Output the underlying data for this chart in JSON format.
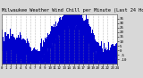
{
  "title": "Milwaukee Weather Wind Chill per Minute (Last 24 Hours)",
  "background_color": "#d8d8d8",
  "plot_bg_color": "#ffffff",
  "line_color": "#0000cc",
  "fill_color": "#0000cc",
  "ylim": [
    -15,
    40
  ],
  "yticks": [
    35,
    30,
    25,
    20,
    15,
    10,
    5,
    0,
    -5,
    -10
  ],
  "num_points": 1440,
  "grid_color": "#888888",
  "title_fontsize": 3.8,
  "tick_fontsize": 3.0
}
